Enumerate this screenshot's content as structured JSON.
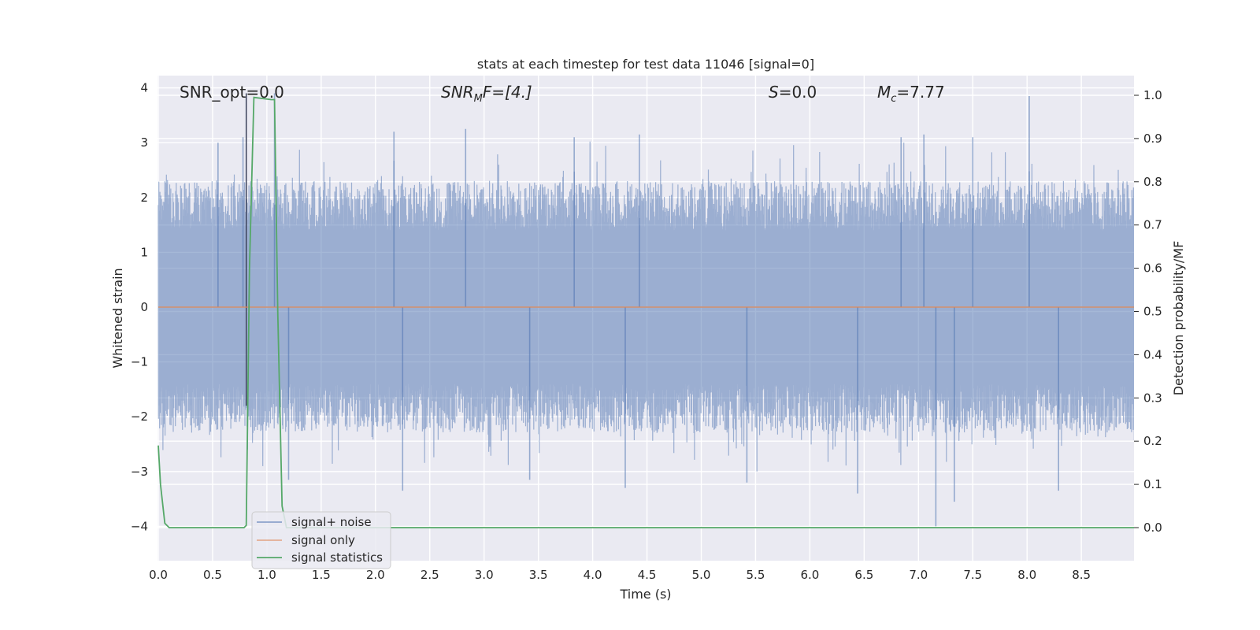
{
  "chart_data": {
    "type": "line",
    "title": "stats at each timestep for test data 11046 [signal=0]",
    "xlabel": "Time (s)",
    "ylabel": "Whitened strain",
    "y2label": "Detection probability/MF",
    "xlim": [
      0.0,
      9.0
    ],
    "ylim": [
      -4.4,
      4.2
    ],
    "y2lim": [
      -0.045,
      1.03
    ],
    "xticks": [
      0.0,
      0.5,
      1.0,
      1.5,
      2.0,
      2.5,
      3.0,
      3.5,
      4.0,
      4.5,
      5.0,
      5.5,
      6.0,
      6.5,
      7.0,
      7.5,
      8.0,
      8.5
    ],
    "xtick_labels": [
      "0.0",
      "0.5",
      "1.0",
      "1.5",
      "2.0",
      "2.5",
      "3.0",
      "3.5",
      "4.0",
      "4.5",
      "5.0",
      "5.5",
      "6.0",
      "6.5",
      "7.0",
      "7.5",
      "8.0",
      "8.5"
    ],
    "yticks": [
      4,
      3,
      2,
      1,
      0,
      -1,
      -2,
      -3,
      -4
    ],
    "ytick_labels": [
      "4",
      "3",
      "2",
      "1",
      "0",
      "−1",
      "−2",
      "−3",
      "−4"
    ],
    "y2ticks": [
      1.0,
      0.9,
      0.8,
      0.7,
      0.6,
      0.5,
      0.4,
      0.3,
      0.2,
      0.1,
      0.0
    ],
    "y2tick_labels": [
      "1.0",
      "0.9",
      "0.8",
      "0.7",
      "0.6",
      "0.5",
      "0.4",
      "0.3",
      "0.2",
      "0.1",
      "0.0"
    ],
    "grid": true,
    "legend_position": "lower-left",
    "annotations": {
      "snr_opt": "SNR_opt=0.0",
      "snr_mf_name": "SNR",
      "snr_mf_sub": "M",
      "snr_mf_rest": "F=[4.]",
      "s_name": "S",
      "s_rest": "=0.0",
      "mc_name": "M",
      "mc_sub": "c",
      "mc_rest": "=7.77"
    },
    "series": [
      {
        "name": "signal+ noise",
        "color": "#4c72b0",
        "description_level": "noise",
        "amplitude_range": [
          -4.0,
          3.9
        ],
        "typical_peak_range": [
          1.4,
          2.3
        ],
        "spikes": [
          {
            "x": 0.81,
            "y": 3.9
          },
          {
            "x": 0.55,
            "y": 3.0
          },
          {
            "x": 0.78,
            "y": 3.1
          },
          {
            "x": 1.07,
            "y": 3.9
          },
          {
            "x": 2.17,
            "y": 3.2
          },
          {
            "x": 2.83,
            "y": 3.25
          },
          {
            "x": 3.83,
            "y": 3.1
          },
          {
            "x": 4.43,
            "y": 3.15
          },
          {
            "x": 6.84,
            "y": 3.1
          },
          {
            "x": 7.05,
            "y": 3.15
          },
          {
            "x": 7.5,
            "y": 3.1
          },
          {
            "x": 8.02,
            "y": 3.85
          },
          {
            "x": 1.2,
            "y": -3.15
          },
          {
            "x": 2.25,
            "y": -3.35
          },
          {
            "x": 3.42,
            "y": -3.15
          },
          {
            "x": 4.3,
            "y": -3.3
          },
          {
            "x": 5.42,
            "y": -3.2
          },
          {
            "x": 6.44,
            "y": -3.4
          },
          {
            "x": 7.16,
            "y": -4.0
          },
          {
            "x": 7.33,
            "y": -3.55
          },
          {
            "x": 8.29,
            "y": -3.35
          }
        ]
      },
      {
        "name": "signal only",
        "color": "#dd8452",
        "x": [
          0.0,
          9.0
        ],
        "y": [
          0.0,
          0.0
        ]
      },
      {
        "name": "signal statistics",
        "color": "#55a868",
        "axis": "right",
        "x": [
          0.0,
          0.02,
          0.06,
          0.1,
          0.2,
          0.79,
          0.81,
          0.84,
          0.88,
          1.04,
          1.07,
          1.1,
          1.14,
          1.18,
          9.0
        ],
        "y": [
          0.19,
          0.1,
          0.01,
          0.0,
          0.0,
          0.0,
          0.005,
          0.6,
          0.995,
          0.99,
          0.99,
          0.5,
          0.05,
          0.0,
          0.0
        ]
      }
    ]
  }
}
